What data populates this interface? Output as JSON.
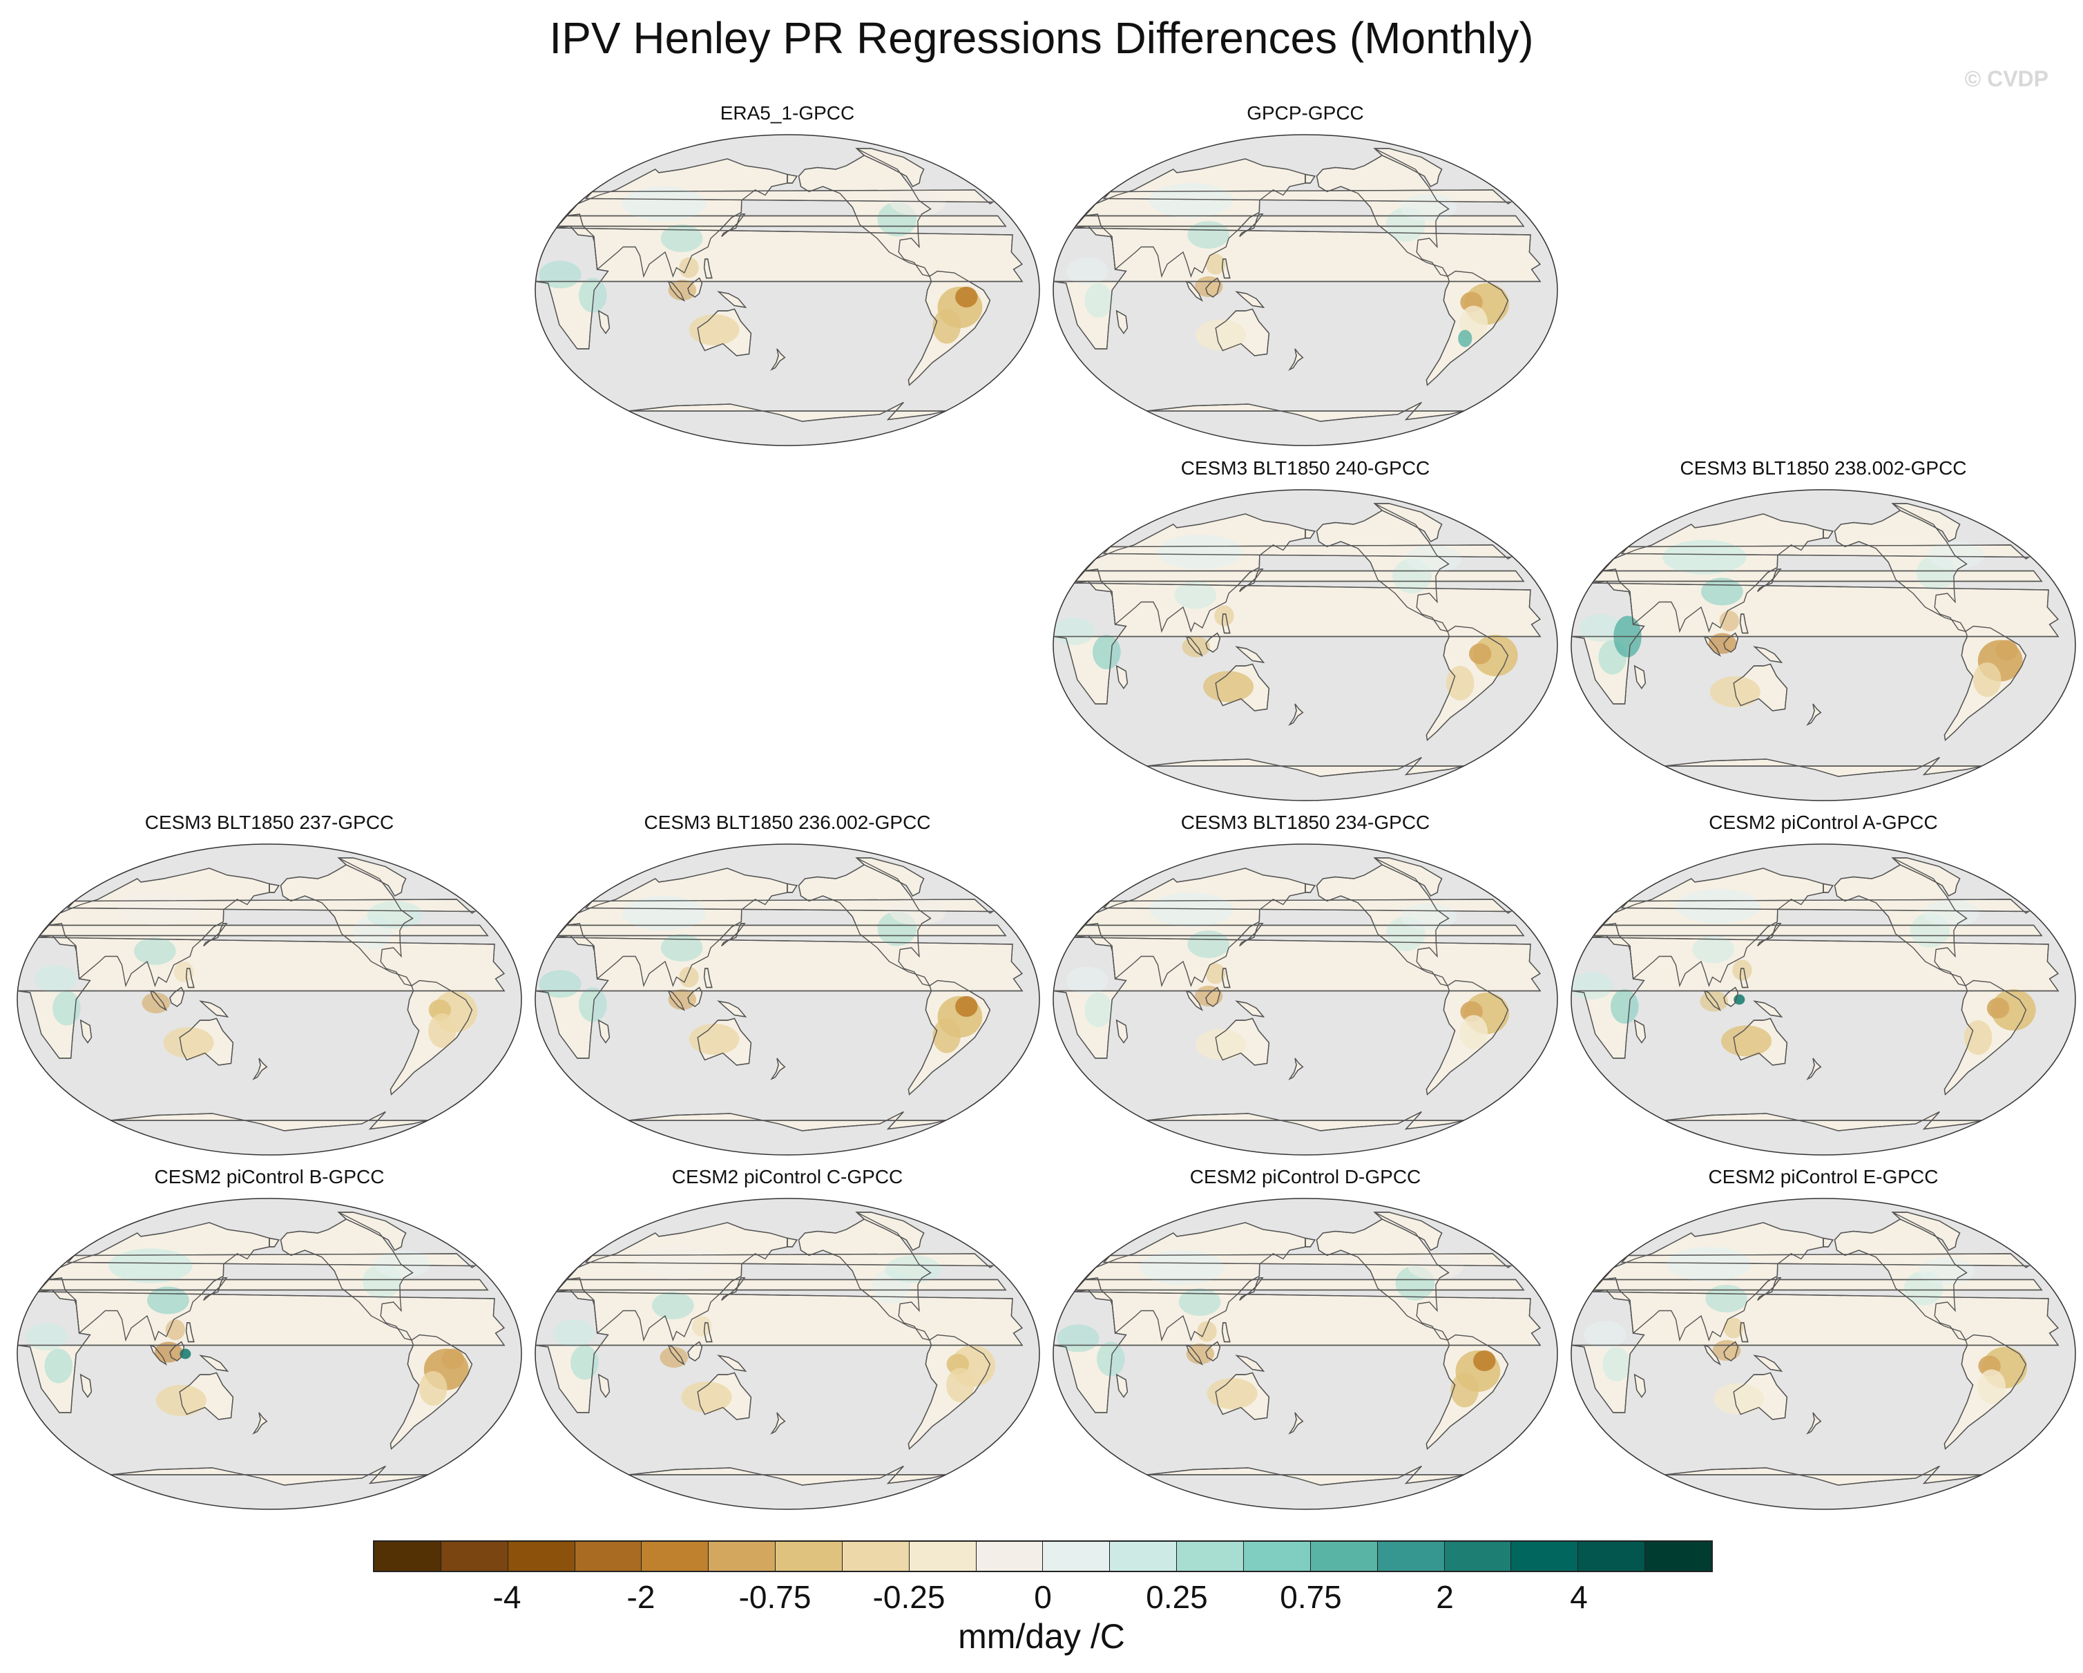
{
  "title": "IPV Henley PR Regressions Differences (Monthly)",
  "watermark": "© CVDP",
  "panels": [
    {
      "label": "ERA5_1-GPCC",
      "variant": 0
    },
    {
      "label": "GPCP-GPCC",
      "variant": 1
    },
    {
      "label": "CESM3 BLT1850 240-GPCC",
      "variant": 2
    },
    {
      "label": "CESM3 BLT1850 238.002-GPCC",
      "variant": 3
    },
    {
      "label": "CESM3 BLT1850 237-GPCC",
      "variant": 4
    },
    {
      "label": "CESM3 BLT1850 236.002-GPCC",
      "variant": 5
    },
    {
      "label": "CESM3 BLT1850 234-GPCC",
      "variant": 6
    },
    {
      "label": "CESM2 piControl A-GPCC",
      "variant": 7
    },
    {
      "label": "CESM2 piControl B-GPCC",
      "variant": 8
    },
    {
      "label": "CESM2 piControl C-GPCC",
      "variant": 9
    },
    {
      "label": "CESM2 piControl D-GPCC",
      "variant": 10
    },
    {
      "label": "CESM2 piControl E-GPCC",
      "variant": 11
    }
  ],
  "colorbar": {
    "colors": [
      "#543005",
      "#7a4510",
      "#8c510a",
      "#a86b21",
      "#bf812d",
      "#d4a75f",
      "#dfc27d",
      "#ecd8a8",
      "#f4ead0",
      "#f3efe8",
      "#e6f0ee",
      "#cdebe4",
      "#a8ddd2",
      "#80cdc1",
      "#5ab4a6",
      "#35978f",
      "#1d7f74",
      "#01665e",
      "#02564e",
      "#003c30"
    ],
    "tick_labels": [
      "-4",
      "-2",
      "-0.75",
      "-0.25",
      "0",
      "0.25",
      "0.75",
      "2",
      "4"
    ],
    "tick_box_index": [
      2,
      4,
      6,
      8,
      10,
      12,
      14,
      16,
      18
    ],
    "units": "mm/day /C"
  }
}
